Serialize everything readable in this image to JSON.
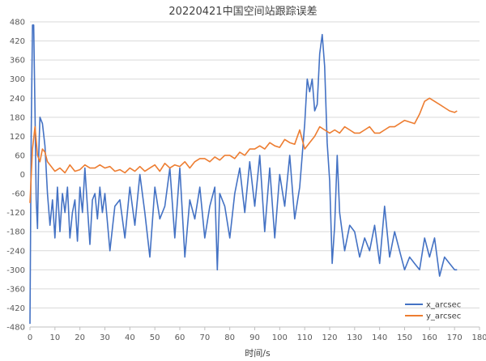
{
  "chart_data": {
    "type": "line",
    "title": "20220421中国空间站跟踪误差",
    "xlabel": "时间/s",
    "ylabel": "",
    "xlim": [
      0,
      180
    ],
    "ylim": [
      -480,
      480
    ],
    "xticks": [
      0,
      10,
      20,
      30,
      40,
      50,
      60,
      70,
      80,
      90,
      100,
      110,
      120,
      130,
      140,
      150,
      160,
      170,
      180
    ],
    "yticks": [
      -480,
      -420,
      -360,
      -300,
      -240,
      -180,
      -120,
      -60,
      0,
      60,
      120,
      180,
      240,
      300,
      360,
      420,
      480
    ],
    "grid": "horizontal",
    "legend_position": "bottom-right",
    "series": [
      {
        "name": "x_arcsec",
        "color": "#4472C4",
        "x": [
          0,
          0.5,
          1,
          1.5,
          2,
          2.5,
          3,
          3.5,
          4,
          5,
          6,
          7,
          8,
          9,
          10,
          11,
          12,
          13,
          14,
          15,
          16,
          17,
          18,
          19,
          20,
          21,
          22,
          23,
          24,
          25,
          26,
          27,
          28,
          29,
          30,
          32,
          34,
          36,
          38,
          40,
          42,
          44,
          46,
          48,
          50,
          52,
          54,
          56,
          58,
          60,
          62,
          64,
          66,
          68,
          70,
          72,
          74,
          75,
          76,
          78,
          80,
          82,
          84,
          86,
          88,
          90,
          92,
          94,
          96,
          98,
          100,
          102,
          104,
          106,
          108,
          110,
          111,
          112,
          113,
          114,
          115,
          116,
          117,
          118,
          119,
          120,
          121,
          122,
          123,
          124,
          126,
          128,
          130,
          132,
          134,
          136,
          138,
          140,
          142,
          144,
          146,
          148,
          150,
          152,
          154,
          156,
          158,
          160,
          162,
          164,
          166,
          168,
          170,
          171
        ],
        "y": [
          -470,
          120,
          470,
          470,
          200,
          -80,
          -170,
          60,
          180,
          160,
          90,
          -60,
          -160,
          -80,
          -200,
          -40,
          -180,
          -60,
          -120,
          -40,
          -200,
          -120,
          -80,
          -210,
          -40,
          -120,
          20,
          -100,
          -220,
          -80,
          -60,
          -140,
          -40,
          -120,
          -60,
          -240,
          -100,
          -80,
          -200,
          -40,
          -160,
          0,
          -120,
          -260,
          -40,
          -140,
          -100,
          20,
          -200,
          20,
          -260,
          -80,
          -140,
          -40,
          -200,
          -100,
          -40,
          -300,
          -60,
          -100,
          -200,
          -60,
          20,
          -120,
          40,
          -100,
          60,
          -180,
          20,
          -200,
          0,
          -100,
          60,
          -140,
          -40,
          160,
          300,
          260,
          300,
          200,
          220,
          380,
          440,
          340,
          100,
          -20,
          -280,
          -160,
          60,
          -120,
          -240,
          -160,
          -180,
          -260,
          -200,
          -240,
          -160,
          -280,
          -100,
          -260,
          -180,
          -240,
          -300,
          -260,
          -280,
          -300,
          -200,
          -260,
          -200,
          -320,
          -260,
          -280,
          -300,
          -300
        ]
      },
      {
        "name": "y_arcsec",
        "color": "#ED7D31",
        "x": [
          0,
          1,
          2,
          3,
          4,
          5,
          6,
          7,
          8,
          10,
          12,
          14,
          16,
          18,
          20,
          22,
          24,
          26,
          28,
          30,
          32,
          34,
          36,
          38,
          40,
          42,
          44,
          46,
          48,
          50,
          52,
          54,
          56,
          58,
          60,
          62,
          64,
          66,
          68,
          70,
          72,
          74,
          76,
          78,
          80,
          82,
          84,
          86,
          88,
          90,
          92,
          94,
          96,
          98,
          100,
          102,
          104,
          106,
          108,
          110,
          112,
          114,
          116,
          118,
          120,
          122,
          124,
          126,
          128,
          130,
          132,
          134,
          136,
          138,
          140,
          142,
          144,
          146,
          148,
          150,
          152,
          154,
          156,
          158,
          160,
          162,
          164,
          166,
          168,
          170,
          171
        ],
        "y": [
          -90,
          80,
          150,
          60,
          40,
          80,
          70,
          40,
          30,
          10,
          20,
          5,
          30,
          10,
          15,
          30,
          20,
          20,
          30,
          20,
          25,
          10,
          15,
          5,
          20,
          10,
          25,
          10,
          20,
          30,
          10,
          35,
          20,
          30,
          25,
          40,
          20,
          40,
          50,
          50,
          40,
          55,
          45,
          60,
          60,
          50,
          70,
          60,
          80,
          80,
          90,
          80,
          100,
          90,
          85,
          110,
          100,
          95,
          140,
          80,
          100,
          120,
          150,
          140,
          130,
          140,
          130,
          150,
          140,
          130,
          130,
          140,
          150,
          130,
          130,
          140,
          150,
          150,
          160,
          170,
          165,
          160,
          190,
          230,
          240,
          230,
          220,
          210,
          200,
          195,
          200
        ]
      }
    ]
  }
}
